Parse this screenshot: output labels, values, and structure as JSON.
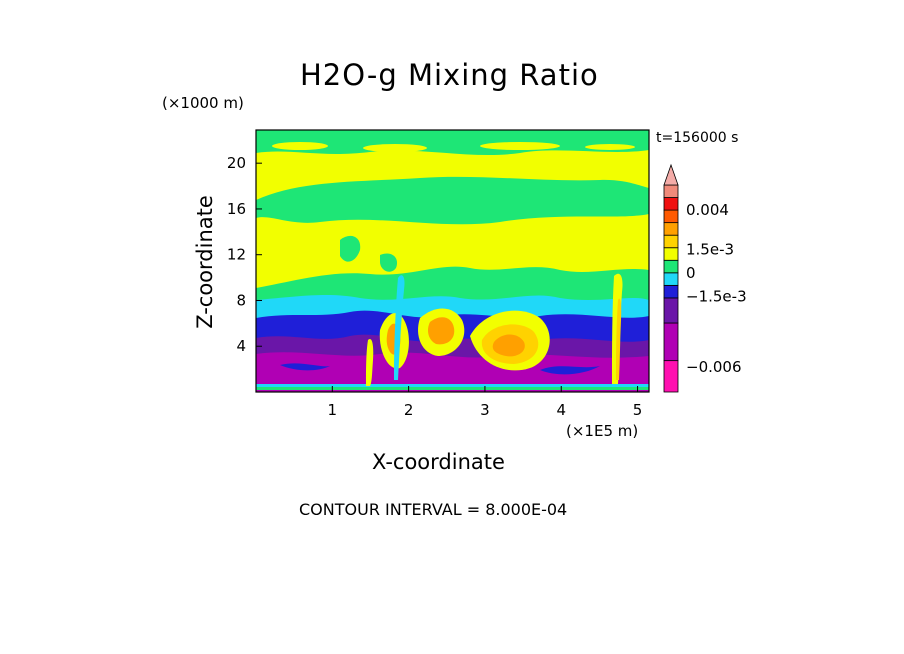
{
  "chart_data": {
    "type": "heatmap",
    "title": "H2O-g Mixing Ratio",
    "subtitle": "t=156000 s",
    "xlabel": "X-coordinate",
    "xunit": "(×1E5 m)",
    "ylabel": "Z-coordinate",
    "yunit": "(×1000 m)",
    "xlim": [
      0,
      5.15
    ],
    "ylim": [
      0,
      22.9
    ],
    "xticks": [
      1,
      2,
      3,
      4,
      5
    ],
    "yticks": [
      4,
      8,
      12,
      16,
      20
    ],
    "contour_interval": "CONTOUR INTERVAL = 8.000E-04",
    "colorbar": {
      "labels": [
        {
          "text": "0.004",
          "value": 0.004
        },
        {
          "text": "1.5e-3",
          "value": 0.0015
        },
        {
          "text": "0",
          "value": 0
        },
        {
          "text": "−1.5e-3",
          "value": -0.0015
        },
        {
          "text": "−0.006",
          "value": -0.006
        }
      ],
      "levels": [
        {
          "from": -0.0076,
          "to": -0.0056,
          "color": "#ff10b0"
        },
        {
          "from": -0.0056,
          "to": -0.0032,
          "color": "#b000b4"
        },
        {
          "from": -0.0032,
          "to": -0.0016,
          "color": "#6a16a8"
        },
        {
          "from": -0.0016,
          "to": -0.0008,
          "color": "#1f1fd8"
        },
        {
          "from": -0.0008,
          "to": 0.0,
          "color": "#20d8f8"
        },
        {
          "from": 0.0,
          "to": 0.0008,
          "color": "#1ee676"
        },
        {
          "from": 0.0008,
          "to": 0.0016,
          "color": "#f2ff00"
        },
        {
          "from": 0.0016,
          "to": 0.0024,
          "color": "#ffd200"
        },
        {
          "from": 0.0024,
          "to": 0.0032,
          "color": "#ffa000"
        },
        {
          "from": 0.0032,
          "to": 0.004,
          "color": "#ff5a00"
        },
        {
          "from": 0.004,
          "to": 0.0048,
          "color": "#f01010"
        },
        {
          "from": 0.0048,
          "to": 0.0056,
          "color": "#f08a7a"
        }
      ]
    }
  }
}
